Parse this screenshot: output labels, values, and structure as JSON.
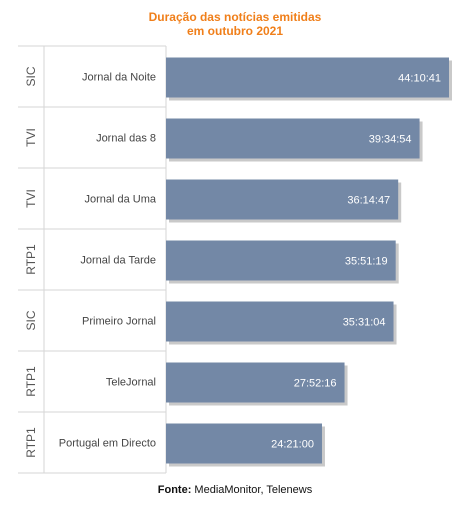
{
  "title_line1": "Duração das notícias emitidas",
  "title_line2": "em outubro 2021",
  "footer": {
    "label": "Fonte:",
    "text": " MediaMonitor, Telenews"
  },
  "colors": {
    "bar": "#7388a6",
    "bar_shadow": "#c9c9c9",
    "title": "#f07f1a",
    "grid": "#d6d6d6",
    "text": "#444444"
  },
  "chart_data": {
    "type": "bar",
    "orientation": "horizontal",
    "title": "Duração das notícias emitidas em outubro 2021",
    "categories": [
      "Jornal da Noite",
      "Jornal das 8",
      "Jornal da Uma",
      "Jornal da Tarde",
      "Primeiro Jornal",
      "TeleJornal",
      "Portugal em Directo"
    ],
    "channels": [
      "SIC",
      "TVI",
      "TVI",
      "RTP1",
      "SIC",
      "RTP1",
      "RTP1"
    ],
    "labels": [
      "44:10:41",
      "39:34:54",
      "36:14:47",
      "35:51:19",
      "35:31:04",
      "27:52:16",
      "24:21:00"
    ],
    "values_seconds": [
      159041,
      142494,
      130487,
      129079,
      127864,
      100336,
      87660
    ],
    "legend": "none",
    "grid": false
  }
}
